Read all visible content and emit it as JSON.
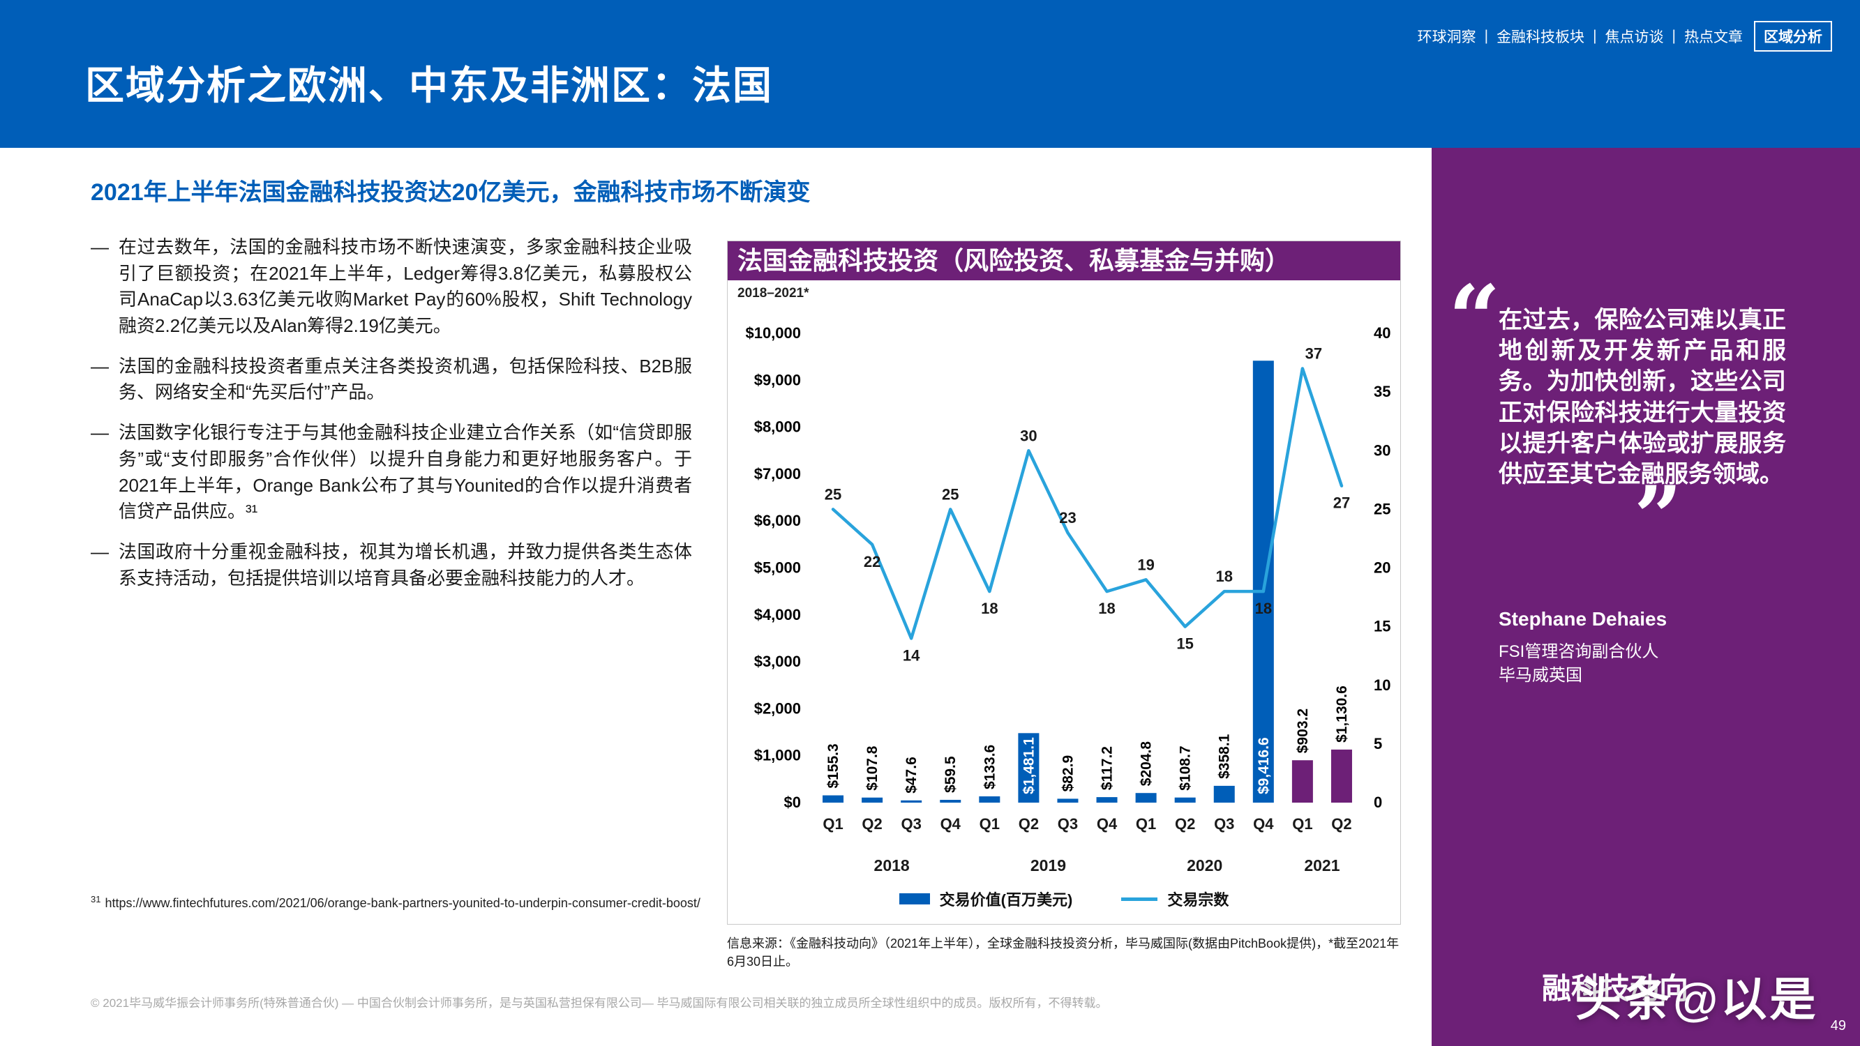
{
  "colors": {
    "header_blue": "#005EB8",
    "purple": "#6D2077",
    "bar_blue": "#005EB8",
    "bar_purple": "#6D2077",
    "line_blue": "#29A3DC"
  },
  "nav": {
    "items": [
      "环球洞察",
      "金融科技板块",
      "焦点访谈",
      "热点文章"
    ],
    "separator": "|",
    "active": "区域分析"
  },
  "header": {
    "title": "区域分析之欧洲、中东及非洲区：法国"
  },
  "main": {
    "heading": "2021年上半年法国金融科技投资达20亿美元，金融科技市场不断演变",
    "bullet_dash": "—",
    "bullets": [
      "在过去数年，法国的金融科技市场不断快速演变，多家金融科技企业吸引了巨额投资；在2021年上半年，Ledger筹得3.8亿美元，私募股权公司AnaCap以3.63亿美元收购Market Pay的60%股权，Shift Technology融资2.2亿美元以及Alan筹得2.19亿美元。",
      "法国的金融科技投资者重点关注各类投资机遇，包括保险科技、B2B服务、网络安全和“先买后付”产品。",
      "法国数字化银行专注于与其他金融科技企业建立合作关系（如“信贷即服务”或“支付即服务”合作伙伴）以提升自身能力和更好地服务客户。于2021年上半年，Orange Bank公布了其与Younited的合作以提升消费者信贷产品供应。³¹",
      "法国政府十分重视金融科技，视其为增长机遇，并致力提供各类生态体系支持活动，包括提供培训以培育具备必要金融科技能力的人才。"
    ],
    "footnote": {
      "marker": "31",
      "url": "https://www.fintechfutures.com/2021/06/orange-bank-partners-younited-to-underpin-consumer-credit-boost/"
    },
    "copyright": "© 2021毕马威华振会计师事务所(特殊普通合伙) — 中国合伙制会计师事务所，是与英国私营担保有限公司— 毕马威国际有限公司相关联的独立成员所全球性组织中的成员。版权所有，不得转载。"
  },
  "chart": {
    "source": "信息来源：《金融科技动向》（2021年上半年），全球金融科技投资分析，毕马威国际(数据由PitchBook提供)，*截至2021年6月30日止。"
  },
  "chart_data": {
    "type": "bar+line",
    "title": "法国金融科技投资（风险投资、私募基金与并购）",
    "subtitle": "2018–2021*",
    "grid": false,
    "legend_position": "bottom",
    "quarters": [
      "Q1",
      "Q2",
      "Q3",
      "Q4",
      "Q1",
      "Q2",
      "Q3",
      "Q4",
      "Q1",
      "Q2",
      "Q3",
      "Q4",
      "Q1",
      "Q2"
    ],
    "year_groups": [
      {
        "label": "2018",
        "span": 4
      },
      {
        "label": "2019",
        "span": 4
      },
      {
        "label": "2020",
        "span": 4
      },
      {
        "label": "2021",
        "span": 2
      }
    ],
    "bar_series": {
      "name": "交易价值(百万美元)",
      "values": [
        155.3,
        107.8,
        47.6,
        59.5,
        133.6,
        1481.1,
        82.9,
        117.2,
        204.8,
        108.7,
        358.1,
        9416.6,
        903.2,
        1130.6
      ],
      "labels": [
        "$155.3",
        "$107.8",
        "$47.6",
        "$59.5",
        "$133.6",
        "$1,481.1",
        "$82.9",
        "$117.2",
        "$204.8",
        "$108.7",
        "$358.1",
        "$9,416.6",
        "$903.2",
        "$1,130.6"
      ]
    },
    "line_series": {
      "name": "交易宗数",
      "values": [
        25,
        22,
        14,
        25,
        18,
        30,
        23,
        18,
        19,
        15,
        18,
        18,
        37,
        27
      ]
    },
    "left_axis": {
      "min": 0,
      "max": 10000,
      "step": 1000,
      "tick_labels": [
        "$0",
        "$1,000",
        "$2,000",
        "$3,000",
        "$4,000",
        "$5,000",
        "$6,000",
        "$7,000",
        "$8,000",
        "$9,000",
        "$10,000"
      ]
    },
    "right_axis": {
      "min": 0,
      "max": 40,
      "step": 5
    },
    "bar_color": "#005EB8",
    "bar_color_alt": "#6D2077",
    "alt_bar_indices": [
      12,
      13
    ],
    "inside_label_indices": [
      5,
      11
    ],
    "line_color": "#29A3DC"
  },
  "sidebar": {
    "quote_open": "“",
    "quote_close": "”",
    "quote": "在过去，保险公司难以真正地创新及开发新产品和服务。为加快创新，这些公司正对保险科技进行大量投资以提升客户体验或扩展服务供应至其它金融服务领域。",
    "author": {
      "name": "Stephane Dehaies",
      "title": "FSI管理咨询副合伙人",
      "org": "毕马威英国"
    },
    "bottom_text": "融科技动向",
    "page_number": "49"
  },
  "watermark": {
    "text": "头条@以是"
  }
}
